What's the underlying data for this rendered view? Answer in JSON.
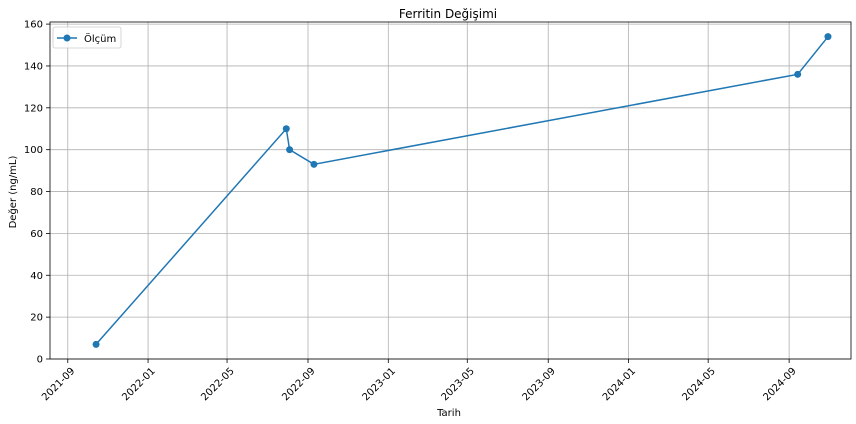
{
  "chart_data": {
    "type": "line",
    "title": "Ferritin Değişimi",
    "xlabel": "Tarih",
    "ylabel": "Değer (ng/mL)",
    "x_type": "date",
    "xlim": [
      "2021-08-05",
      "2024-12-04"
    ],
    "ylim": [
      0,
      161
    ],
    "x_ticks": [
      "2021-09",
      "2022-01",
      "2022-05",
      "2022-09",
      "2023-01",
      "2023-05",
      "2023-09",
      "2024-01",
      "2024-05",
      "2024-09"
    ],
    "y_ticks": [
      0,
      20,
      40,
      60,
      80,
      100,
      120,
      140,
      160
    ],
    "grid": true,
    "legend_position": "top-left",
    "colors": {
      "series": "#1f77b4",
      "grid": "#b0b0b0"
    },
    "series": [
      {
        "name": "Ölçüm",
        "points": [
          {
            "x": "2021-10-14",
            "y": 7
          },
          {
            "x": "2022-07-30",
            "y": 110
          },
          {
            "x": "2022-08-04",
            "y": 100
          },
          {
            "x": "2022-09-10",
            "y": 93
          },
          {
            "x": "2024-09-14",
            "y": 136
          },
          {
            "x": "2024-10-30",
            "y": 154
          }
        ]
      }
    ]
  }
}
